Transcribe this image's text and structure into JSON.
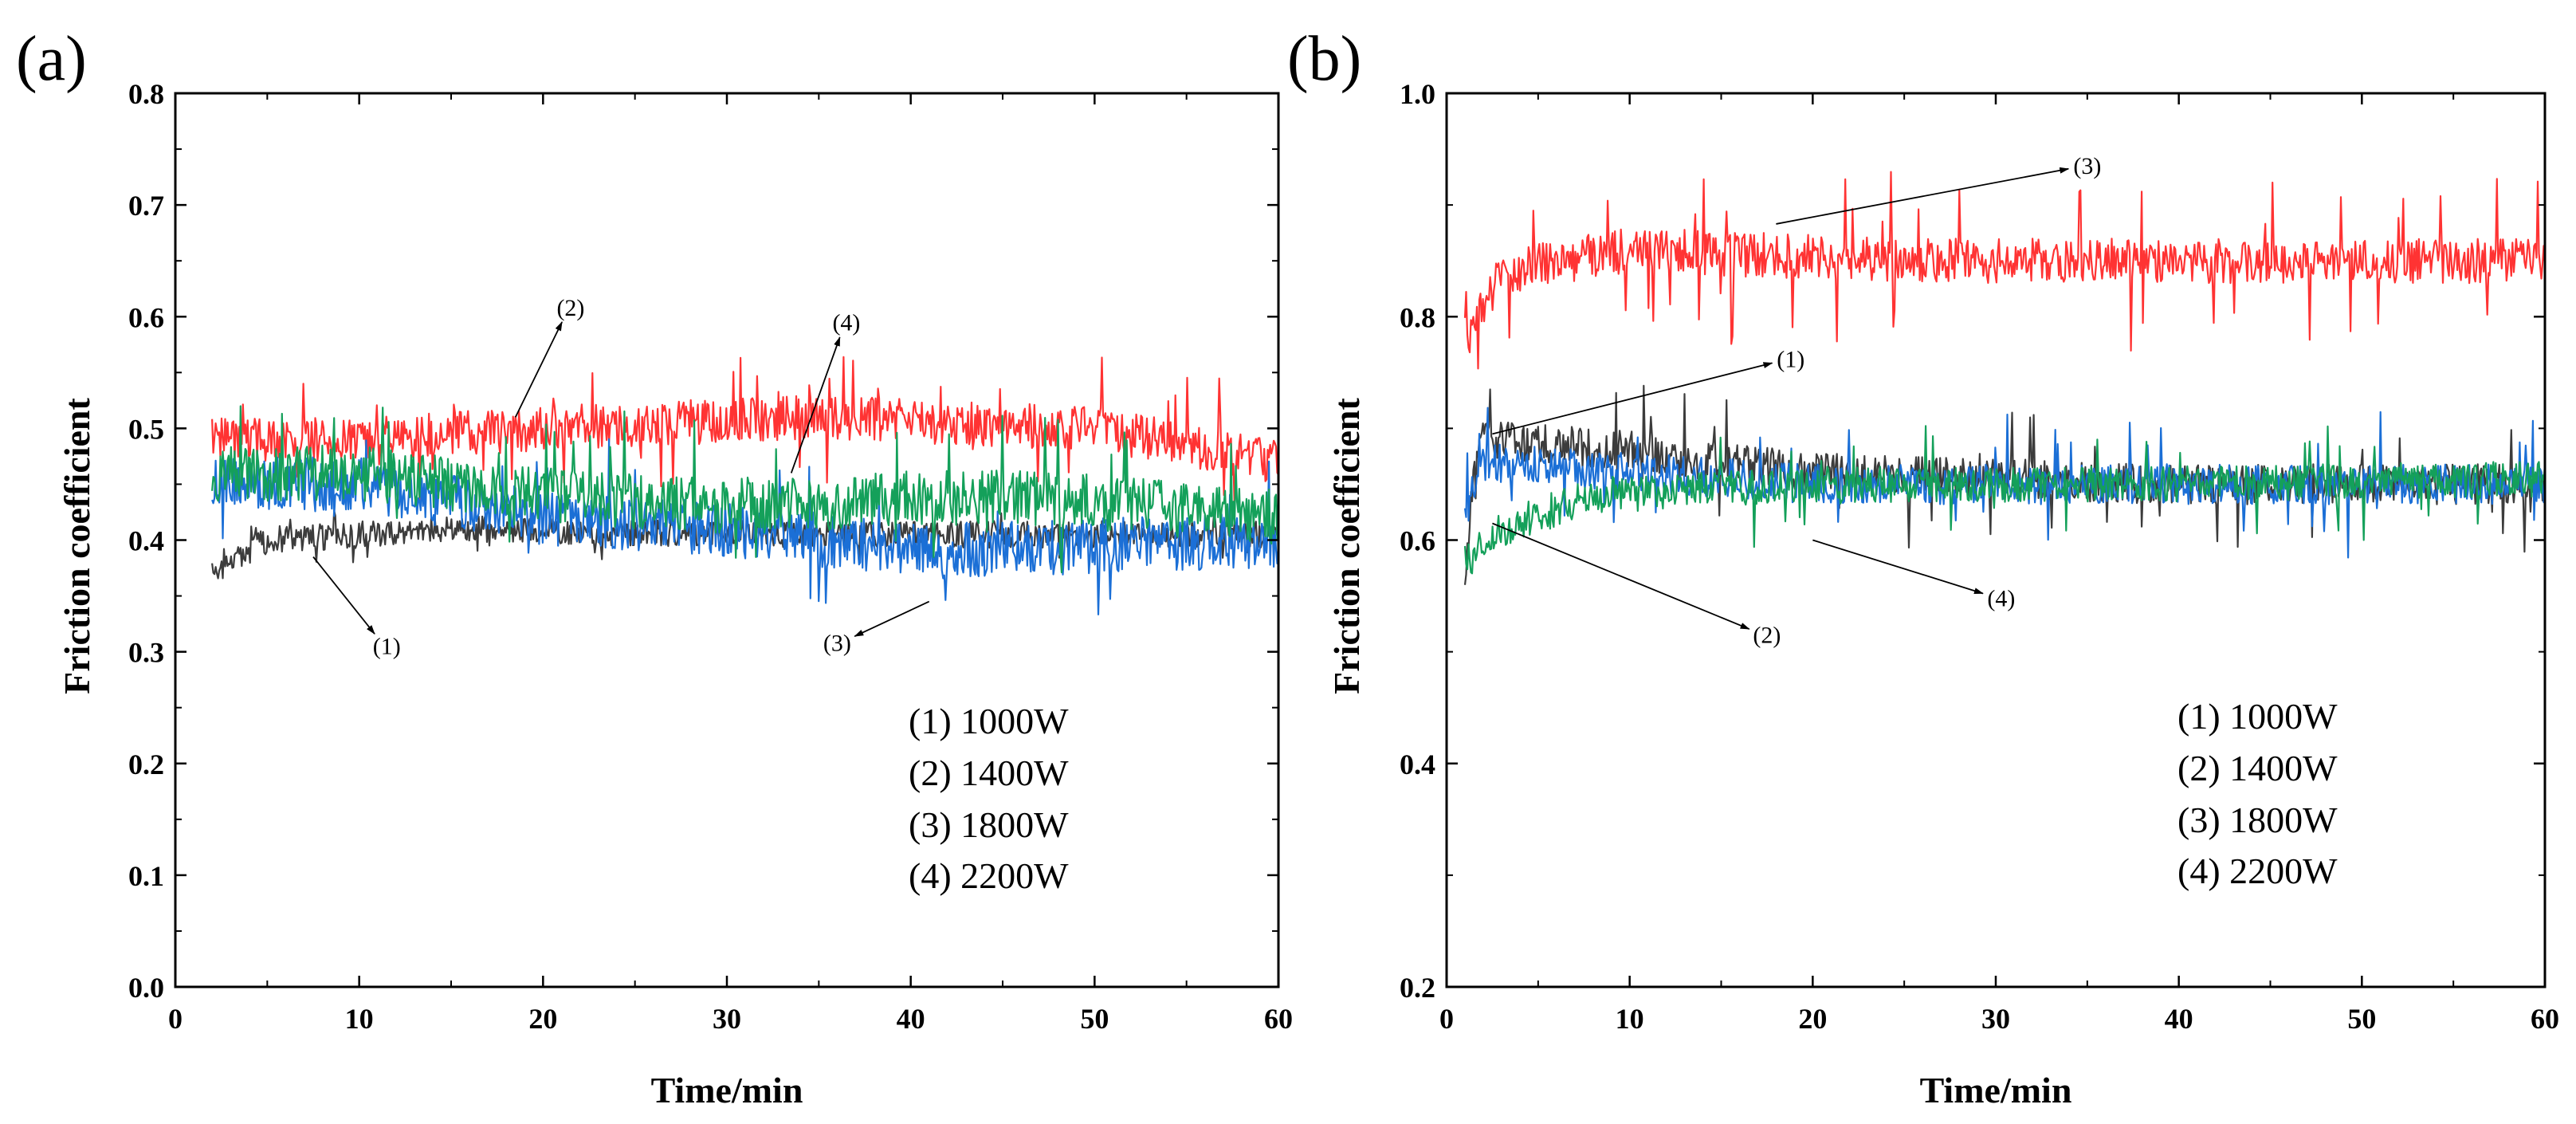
{
  "chart_data": [
    {
      "panel": "(a)",
      "type": "line",
      "xlabel": "Time/min",
      "ylabel": "Friction coefficient",
      "xlim": [
        0,
        60
      ],
      "ylim": [
        0.0,
        0.8
      ],
      "xticks": [
        "0",
        "10",
        "20",
        "30",
        "40",
        "50",
        "60"
      ],
      "yticks": [
        "0.0",
        "0.1",
        "0.2",
        "0.3",
        "0.4",
        "0.5",
        "0.6",
        "0.7",
        "0.8"
      ],
      "x_range": [
        2,
        60
      ],
      "legend": [
        "(1)  1000W",
        "(2)  1400W",
        "(3)  1800W",
        "(4)  2200W"
      ],
      "series": [
        {
          "name": "(1) 1000W",
          "color": "#3c3c3c",
          "mean": 0.4,
          "noise": 0.012,
          "spike": 0.015,
          "points": [
            [
              2,
              0.37
            ],
            [
              5,
              0.4
            ],
            [
              15,
              0.41
            ],
            [
              30,
              0.405
            ],
            [
              45,
              0.405
            ],
            [
              60,
              0.405
            ]
          ]
        },
        {
          "name": "(2) 1400W",
          "color": "#ff3333",
          "mean": 0.49,
          "noise": 0.02,
          "spike": 0.05,
          "points": [
            [
              2,
              0.49
            ],
            [
              10,
              0.49
            ],
            [
              20,
              0.5
            ],
            [
              35,
              0.51
            ],
            [
              50,
              0.5
            ],
            [
              60,
              0.47
            ]
          ]
        },
        {
          "name": "(3) 1800W",
          "color": "#1b6fd6",
          "mean": 0.42,
          "noise": 0.025,
          "spike": 0.05,
          "points": [
            [
              2,
              0.45
            ],
            [
              10,
              0.45
            ],
            [
              20,
              0.42
            ],
            [
              30,
              0.41
            ],
            [
              42,
              0.39
            ],
            [
              60,
              0.4
            ]
          ]
        },
        {
          "name": "(4) 2200W",
          "color": "#14a05a",
          "mean": 0.44,
          "noise": 0.025,
          "spike": 0.06,
          "points": [
            [
              2,
              0.46
            ],
            [
              10,
              0.46
            ],
            [
              20,
              0.44
            ],
            [
              30,
              0.43
            ],
            [
              45,
              0.44
            ],
            [
              60,
              0.42
            ]
          ]
        }
      ],
      "annotations": [
        {
          "label": "(1)",
          "x": 11.5,
          "y": 0.305,
          "tx": 7.5,
          "ty": 0.385
        },
        {
          "label": "(2)",
          "x": 21.5,
          "y": 0.608,
          "tx": 18.5,
          "ty": 0.51
        },
        {
          "label": "(4)",
          "x": 36.5,
          "y": 0.595,
          "tx": 33.5,
          "ty": 0.46
        },
        {
          "label": "(3)",
          "x": 36,
          "y": 0.308,
          "tx": 41,
          "ty": 0.345
        }
      ]
    },
    {
      "panel": "(b)",
      "type": "line",
      "xlabel": "Time/min",
      "ylabel": "Friction coefficient",
      "xlim": [
        0,
        60
      ],
      "ylim": [
        0.2,
        1.0
      ],
      "xticks": [
        "0",
        "10",
        "20",
        "30",
        "40",
        "50",
        "60"
      ],
      "yticks": [
        "0.2",
        "0.4",
        "0.6",
        "0.8",
        "1.0"
      ],
      "x_range": [
        1,
        60
      ],
      "legend": [
        "(1)  1000W",
        "(2)  1400W",
        "(3)  1800W",
        "(4)  2200W"
      ],
      "series": [
        {
          "name": "(1) 1000W",
          "color": "#3c3c3c",
          "mean": 0.66,
          "noise": 0.018,
          "spike": 0.05,
          "points": [
            [
              1,
              0.56
            ],
            [
              1.6,
              0.69
            ],
            [
              10,
              0.68
            ],
            [
              20,
              0.66
            ],
            [
              40,
              0.65
            ],
            [
              60,
              0.65
            ]
          ]
        },
        {
          "name": "(3) 1800W",
          "color": "#ff3333",
          "mean": 0.85,
          "noise": 0.02,
          "spike": 0.07,
          "points": [
            [
              1,
              0.78
            ],
            [
              3,
              0.84
            ],
            [
              10,
              0.86
            ],
            [
              25,
              0.85
            ],
            [
              45,
              0.85
            ],
            [
              60,
              0.85
            ]
          ]
        },
        {
          "name": "(4) 2200W",
          "color": "#1b6fd6",
          "mean": 0.65,
          "noise": 0.018,
          "spike": 0.05,
          "points": [
            [
              1,
              0.62
            ],
            [
              2,
              0.67
            ],
            [
              20,
              0.65
            ],
            [
              40,
              0.65
            ],
            [
              60,
              0.65
            ]
          ]
        },
        {
          "name": "(2) 1400W",
          "color": "#14a05a",
          "mean": 0.64,
          "noise": 0.016,
          "spike": 0.04,
          "points": [
            [
              1,
              0.58
            ],
            [
              3,
              0.61
            ],
            [
              8,
              0.64
            ],
            [
              20,
              0.65
            ],
            [
              40,
              0.65
            ],
            [
              60,
              0.655
            ]
          ]
        }
      ],
      "annotations": [
        {
          "label": "(3)",
          "x": 35,
          "y": 0.935,
          "tx": 18,
          "ty": 0.883
        },
        {
          "label": "(1)",
          "x": 18.8,
          "y": 0.762,
          "tx": 2.5,
          "ty": 0.695
        },
        {
          "label": "(2)",
          "x": 17.5,
          "y": 0.515,
          "tx": 2.5,
          "ty": 0.615
        },
        {
          "label": "(4)",
          "x": 30.3,
          "y": 0.548,
          "tx": 20,
          "ty": 0.6
        }
      ]
    }
  ]
}
